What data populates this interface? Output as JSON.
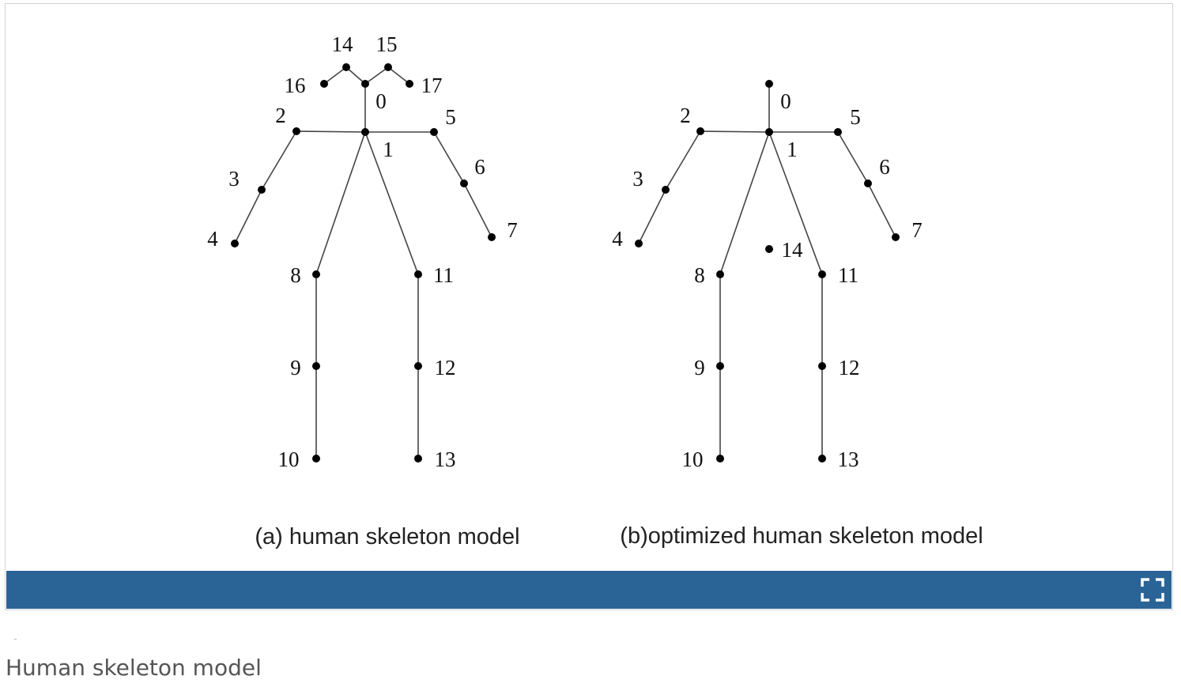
{
  "figure": {
    "panels": [
      {
        "id": "a",
        "subtitle": "(a) human skeleton model",
        "joints": [
          {
            "id": "0",
            "label": "0"
          },
          {
            "id": "1",
            "label": "1"
          },
          {
            "id": "2",
            "label": "2"
          },
          {
            "id": "3",
            "label": "3"
          },
          {
            "id": "4",
            "label": "4"
          },
          {
            "id": "5",
            "label": "5"
          },
          {
            "id": "6",
            "label": "6"
          },
          {
            "id": "7",
            "label": "7"
          },
          {
            "id": "8",
            "label": "8"
          },
          {
            "id": "9",
            "label": "9"
          },
          {
            "id": "10",
            "label": "10"
          },
          {
            "id": "11",
            "label": "11"
          },
          {
            "id": "12",
            "label": "12"
          },
          {
            "id": "13",
            "label": "13"
          },
          {
            "id": "14",
            "label": "14"
          },
          {
            "id": "15",
            "label": "15"
          },
          {
            "id": "16",
            "label": "16"
          },
          {
            "id": "17",
            "label": "17"
          }
        ],
        "bones": [
          [
            "0",
            "1"
          ],
          [
            "1",
            "2"
          ],
          [
            "2",
            "3"
          ],
          [
            "3",
            "4"
          ],
          [
            "1",
            "5"
          ],
          [
            "5",
            "6"
          ],
          [
            "6",
            "7"
          ],
          [
            "1",
            "8"
          ],
          [
            "8",
            "9"
          ],
          [
            "9",
            "10"
          ],
          [
            "1",
            "11"
          ],
          [
            "11",
            "12"
          ],
          [
            "12",
            "13"
          ],
          [
            "0",
            "14"
          ],
          [
            "14",
            "16"
          ],
          [
            "0",
            "15"
          ],
          [
            "15",
            "17"
          ]
        ]
      },
      {
        "id": "b",
        "subtitle": "(b)optimized human skeleton model",
        "joints": [
          {
            "id": "0",
            "label": "0"
          },
          {
            "id": "1",
            "label": "1"
          },
          {
            "id": "2",
            "label": "2"
          },
          {
            "id": "3",
            "label": "3"
          },
          {
            "id": "4",
            "label": "4"
          },
          {
            "id": "5",
            "label": "5"
          },
          {
            "id": "6",
            "label": "6"
          },
          {
            "id": "7",
            "label": "7"
          },
          {
            "id": "8",
            "label": "8"
          },
          {
            "id": "9",
            "label": "9"
          },
          {
            "id": "10",
            "label": "10"
          },
          {
            "id": "11",
            "label": "11"
          },
          {
            "id": "12",
            "label": "12"
          },
          {
            "id": "13",
            "label": "13"
          },
          {
            "id": "14",
            "label": "14"
          }
        ],
        "bones": [
          [
            "0",
            "1"
          ],
          [
            "1",
            "2"
          ],
          [
            "2",
            "3"
          ],
          [
            "3",
            "4"
          ],
          [
            "1",
            "5"
          ],
          [
            "5",
            "6"
          ],
          [
            "6",
            "7"
          ],
          [
            "1",
            "8"
          ],
          [
            "8",
            "9"
          ],
          [
            "9",
            "10"
          ],
          [
            "1",
            "11"
          ],
          [
            "11",
            "12"
          ],
          [
            "12",
            "13"
          ]
        ]
      }
    ]
  },
  "toolbar": {
    "fullscreen_icon": "fullscreen-icon",
    "bar_color": "#2a6496"
  },
  "caption": "Human skeleton model"
}
